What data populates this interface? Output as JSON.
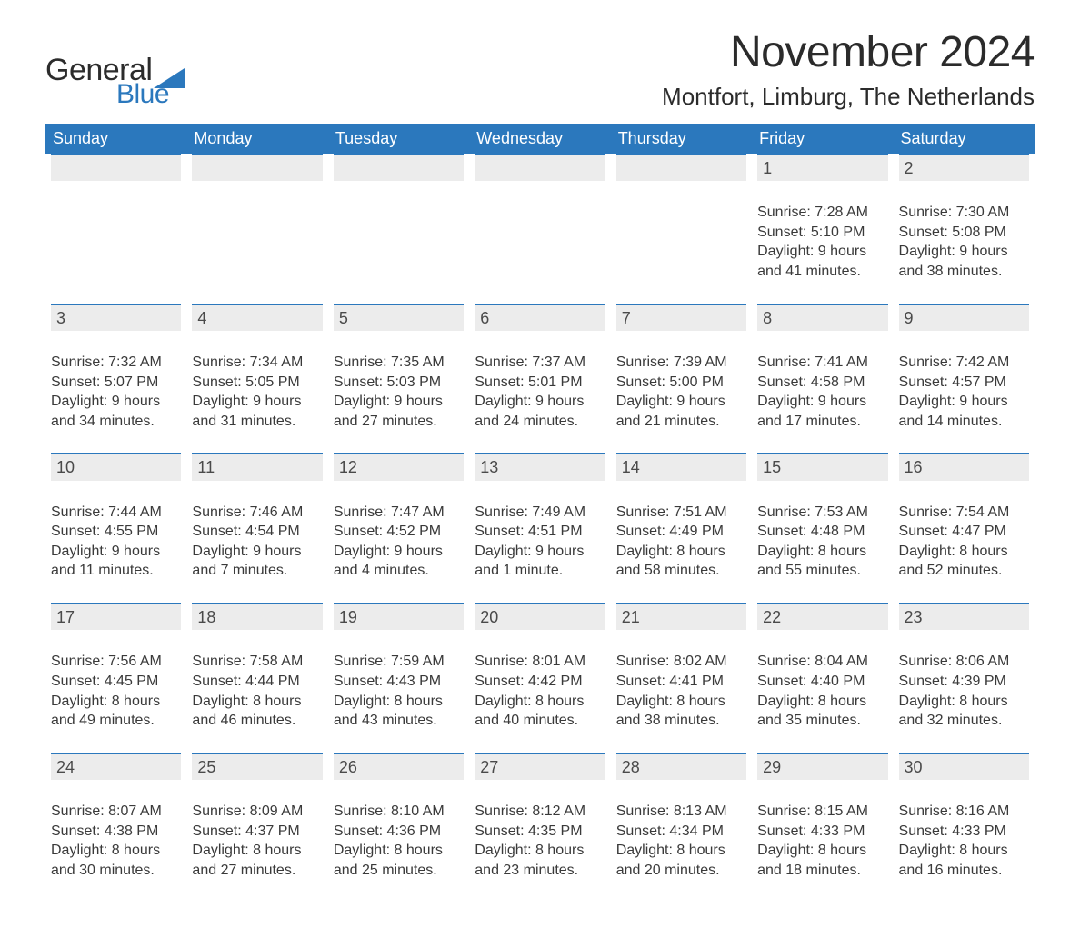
{
  "brand": {
    "word1": "General",
    "word2": "Blue",
    "accent_color": "#2b78bd",
    "text_color": "#2c2c2c"
  },
  "header": {
    "title": "November 2024",
    "location": "Montfort, Limburg, The Netherlands"
  },
  "calendar": {
    "header_bg": "#2b78bd",
    "header_fg": "#ffffff",
    "daybar_bg": "#ececec",
    "daybar_border": "#2b78bd",
    "day_names": [
      "Sunday",
      "Monday",
      "Tuesday",
      "Wednesday",
      "Thursday",
      "Friday",
      "Saturday"
    ],
    "weeks": [
      [
        null,
        null,
        null,
        null,
        null,
        {
          "n": "1",
          "sunrise": "Sunrise: 7:28 AM",
          "sunset": "Sunset: 5:10 PM",
          "dl1": "Daylight: 9 hours",
          "dl2": "and 41 minutes."
        },
        {
          "n": "2",
          "sunrise": "Sunrise: 7:30 AM",
          "sunset": "Sunset: 5:08 PM",
          "dl1": "Daylight: 9 hours",
          "dl2": "and 38 minutes."
        }
      ],
      [
        {
          "n": "3",
          "sunrise": "Sunrise: 7:32 AM",
          "sunset": "Sunset: 5:07 PM",
          "dl1": "Daylight: 9 hours",
          "dl2": "and 34 minutes."
        },
        {
          "n": "4",
          "sunrise": "Sunrise: 7:34 AM",
          "sunset": "Sunset: 5:05 PM",
          "dl1": "Daylight: 9 hours",
          "dl2": "and 31 minutes."
        },
        {
          "n": "5",
          "sunrise": "Sunrise: 7:35 AM",
          "sunset": "Sunset: 5:03 PM",
          "dl1": "Daylight: 9 hours",
          "dl2": "and 27 minutes."
        },
        {
          "n": "6",
          "sunrise": "Sunrise: 7:37 AM",
          "sunset": "Sunset: 5:01 PM",
          "dl1": "Daylight: 9 hours",
          "dl2": "and 24 minutes."
        },
        {
          "n": "7",
          "sunrise": "Sunrise: 7:39 AM",
          "sunset": "Sunset: 5:00 PM",
          "dl1": "Daylight: 9 hours",
          "dl2": "and 21 minutes."
        },
        {
          "n": "8",
          "sunrise": "Sunrise: 7:41 AM",
          "sunset": "Sunset: 4:58 PM",
          "dl1": "Daylight: 9 hours",
          "dl2": "and 17 minutes."
        },
        {
          "n": "9",
          "sunrise": "Sunrise: 7:42 AM",
          "sunset": "Sunset: 4:57 PM",
          "dl1": "Daylight: 9 hours",
          "dl2": "and 14 minutes."
        }
      ],
      [
        {
          "n": "10",
          "sunrise": "Sunrise: 7:44 AM",
          "sunset": "Sunset: 4:55 PM",
          "dl1": "Daylight: 9 hours",
          "dl2": "and 11 minutes."
        },
        {
          "n": "11",
          "sunrise": "Sunrise: 7:46 AM",
          "sunset": "Sunset: 4:54 PM",
          "dl1": "Daylight: 9 hours",
          "dl2": "and 7 minutes."
        },
        {
          "n": "12",
          "sunrise": "Sunrise: 7:47 AM",
          "sunset": "Sunset: 4:52 PM",
          "dl1": "Daylight: 9 hours",
          "dl2": "and 4 minutes."
        },
        {
          "n": "13",
          "sunrise": "Sunrise: 7:49 AM",
          "sunset": "Sunset: 4:51 PM",
          "dl1": "Daylight: 9 hours",
          "dl2": "and 1 minute."
        },
        {
          "n": "14",
          "sunrise": "Sunrise: 7:51 AM",
          "sunset": "Sunset: 4:49 PM",
          "dl1": "Daylight: 8 hours",
          "dl2": "and 58 minutes."
        },
        {
          "n": "15",
          "sunrise": "Sunrise: 7:53 AM",
          "sunset": "Sunset: 4:48 PM",
          "dl1": "Daylight: 8 hours",
          "dl2": "and 55 minutes."
        },
        {
          "n": "16",
          "sunrise": "Sunrise: 7:54 AM",
          "sunset": "Sunset: 4:47 PM",
          "dl1": "Daylight: 8 hours",
          "dl2": "and 52 minutes."
        }
      ],
      [
        {
          "n": "17",
          "sunrise": "Sunrise: 7:56 AM",
          "sunset": "Sunset: 4:45 PM",
          "dl1": "Daylight: 8 hours",
          "dl2": "and 49 minutes."
        },
        {
          "n": "18",
          "sunrise": "Sunrise: 7:58 AM",
          "sunset": "Sunset: 4:44 PM",
          "dl1": "Daylight: 8 hours",
          "dl2": "and 46 minutes."
        },
        {
          "n": "19",
          "sunrise": "Sunrise: 7:59 AM",
          "sunset": "Sunset: 4:43 PM",
          "dl1": "Daylight: 8 hours",
          "dl2": "and 43 minutes."
        },
        {
          "n": "20",
          "sunrise": "Sunrise: 8:01 AM",
          "sunset": "Sunset: 4:42 PM",
          "dl1": "Daylight: 8 hours",
          "dl2": "and 40 minutes."
        },
        {
          "n": "21",
          "sunrise": "Sunrise: 8:02 AM",
          "sunset": "Sunset: 4:41 PM",
          "dl1": "Daylight: 8 hours",
          "dl2": "and 38 minutes."
        },
        {
          "n": "22",
          "sunrise": "Sunrise: 8:04 AM",
          "sunset": "Sunset: 4:40 PM",
          "dl1": "Daylight: 8 hours",
          "dl2": "and 35 minutes."
        },
        {
          "n": "23",
          "sunrise": "Sunrise: 8:06 AM",
          "sunset": "Sunset: 4:39 PM",
          "dl1": "Daylight: 8 hours",
          "dl2": "and 32 minutes."
        }
      ],
      [
        {
          "n": "24",
          "sunrise": "Sunrise: 8:07 AM",
          "sunset": "Sunset: 4:38 PM",
          "dl1": "Daylight: 8 hours",
          "dl2": "and 30 minutes."
        },
        {
          "n": "25",
          "sunrise": "Sunrise: 8:09 AM",
          "sunset": "Sunset: 4:37 PM",
          "dl1": "Daylight: 8 hours",
          "dl2": "and 27 minutes."
        },
        {
          "n": "26",
          "sunrise": "Sunrise: 8:10 AM",
          "sunset": "Sunset: 4:36 PM",
          "dl1": "Daylight: 8 hours",
          "dl2": "and 25 minutes."
        },
        {
          "n": "27",
          "sunrise": "Sunrise: 8:12 AM",
          "sunset": "Sunset: 4:35 PM",
          "dl1": "Daylight: 8 hours",
          "dl2": "and 23 minutes."
        },
        {
          "n": "28",
          "sunrise": "Sunrise: 8:13 AM",
          "sunset": "Sunset: 4:34 PM",
          "dl1": "Daylight: 8 hours",
          "dl2": "and 20 minutes."
        },
        {
          "n": "29",
          "sunrise": "Sunrise: 8:15 AM",
          "sunset": "Sunset: 4:33 PM",
          "dl1": "Daylight: 8 hours",
          "dl2": "and 18 minutes."
        },
        {
          "n": "30",
          "sunrise": "Sunrise: 8:16 AM",
          "sunset": "Sunset: 4:33 PM",
          "dl1": "Daylight: 8 hours",
          "dl2": "and 16 minutes."
        }
      ]
    ]
  }
}
